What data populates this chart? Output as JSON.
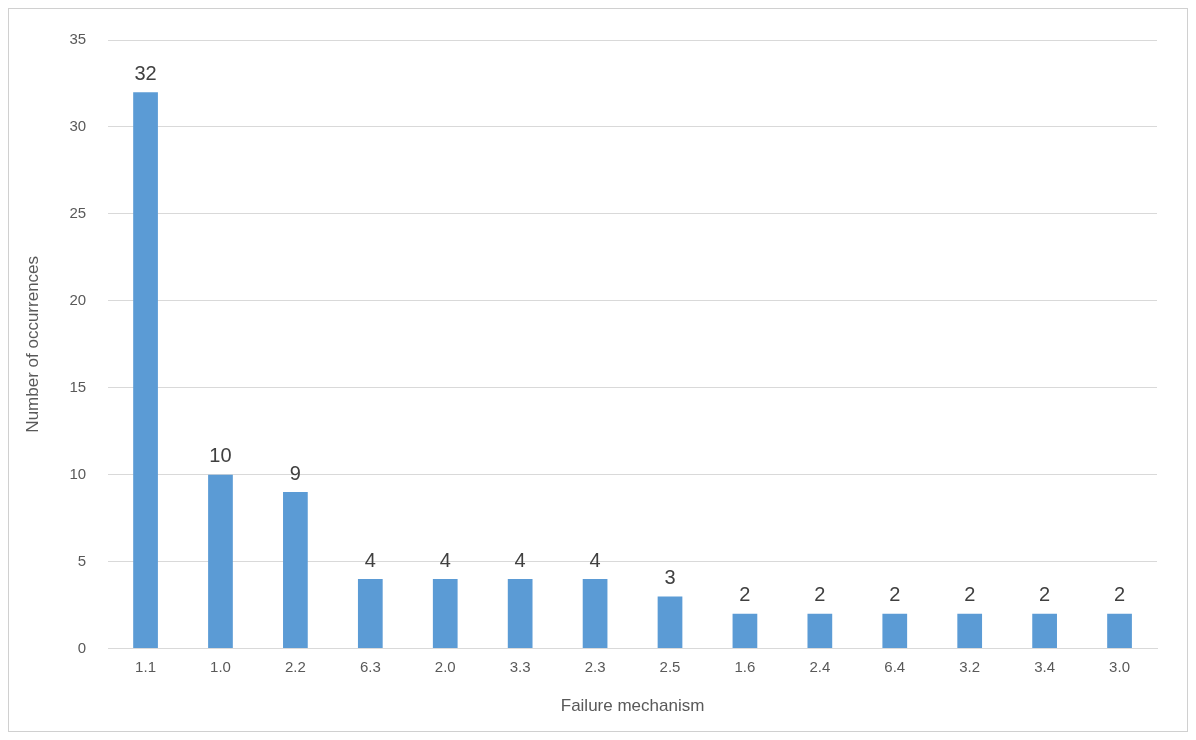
{
  "chart_data": {
    "type": "bar",
    "xlabel": "Failure mechanism",
    "ylabel": "Number of occurrences",
    "categories": [
      "1.1",
      "1.0",
      "2.2",
      "6.3",
      "2.0",
      "3.3",
      "2.3",
      "2.5",
      "1.6",
      "2.4",
      "6.4",
      "3.2",
      "3.4",
      "3.0"
    ],
    "values": [
      32,
      10,
      9,
      4,
      4,
      4,
      4,
      3,
      2,
      2,
      2,
      2,
      2,
      2
    ],
    "color": "#5b9bd5",
    "ylim": [
      0,
      35
    ],
    "yticks": [
      0,
      5,
      10,
      15,
      20,
      25,
      30,
      35
    ],
    "grid": "y",
    "data_labels": true,
    "legend": false
  }
}
